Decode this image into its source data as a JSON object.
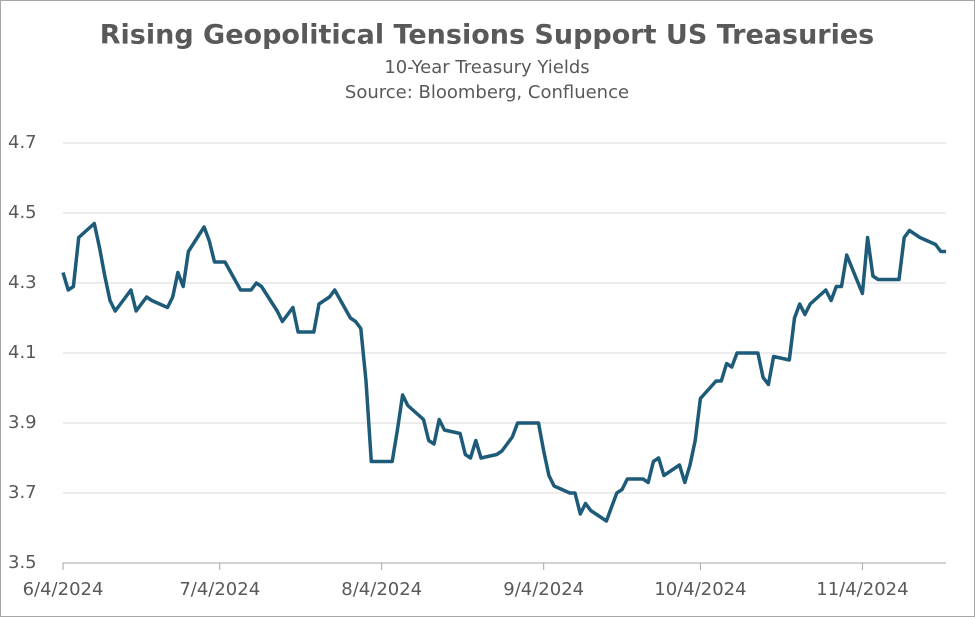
{
  "chart_data": {
    "type": "line",
    "title": "Rising Geopolitical Tensions Support US Treasuries",
    "subtitle": "10-Year Treasury Yields",
    "source": "Source: Bloomberg, Confluence",
    "x": [
      "6/4/2024",
      "6/5/2024",
      "6/6/2024",
      "6/7/2024",
      "6/10/2024",
      "6/11/2024",
      "6/12/2024",
      "6/13/2024",
      "6/14/2024",
      "6/17/2024",
      "6/18/2024",
      "6/20/2024",
      "6/21/2024",
      "6/24/2024",
      "6/25/2024",
      "6/26/2024",
      "6/27/2024",
      "6/28/2024",
      "7/1/2024",
      "7/2/2024",
      "7/3/2024",
      "7/5/2024",
      "7/8/2024",
      "7/9/2024",
      "7/10/2024",
      "7/11/2024",
      "7/12/2024",
      "7/15/2024",
      "7/16/2024",
      "7/18/2024",
      "7/19/2024",
      "7/22/2024",
      "7/23/2024",
      "7/24/2024",
      "7/25/2024",
      "7/26/2024",
      "7/29/2024",
      "7/30/2024",
      "7/31/2024",
      "8/1/2024",
      "8/2/2024",
      "8/5/2024",
      "8/6/2024",
      "8/7/2024",
      "8/8/2024",
      "8/9/2024",
      "8/12/2024",
      "8/13/2024",
      "8/14/2024",
      "8/15/2024",
      "8/16/2024",
      "8/19/2024",
      "8/20/2024",
      "8/21/2024",
      "8/22/2024",
      "8/23/2024",
      "8/26/2024",
      "8/27/2024",
      "8/28/2024",
      "8/29/2024",
      "8/30/2024",
      "9/3/2024",
      "9/4/2024",
      "9/5/2024",
      "9/6/2024",
      "9/9/2024",
      "9/10/2024",
      "9/11/2024",
      "9/12/2024",
      "9/13/2024",
      "9/16/2024",
      "9/17/2024",
      "9/18/2024",
      "9/19/2024",
      "9/20/2024",
      "9/23/2024",
      "9/24/2024",
      "9/25/2024",
      "9/26/2024",
      "9/27/2024",
      "9/30/2024",
      "10/1/2024",
      "10/2/2024",
      "10/3/2024",
      "10/4/2024",
      "10/7/2024",
      "10/8/2024",
      "10/9/2024",
      "10/10/2024",
      "10/11/2024",
      "10/14/2024",
      "10/15/2024",
      "10/16/2024",
      "10/17/2024",
      "10/18/2024",
      "10/21/2024",
      "10/22/2024",
      "10/23/2024",
      "10/24/2024",
      "10/25/2024",
      "10/28/2024",
      "10/29/2024",
      "10/30/2024",
      "10/31/2024",
      "11/1/2024",
      "11/4/2024",
      "11/5/2024",
      "11/6/2024",
      "11/7/2024",
      "11/8/2024",
      "11/11/2024",
      "11/12/2024",
      "11/13/2024",
      "11/14/2024",
      "11/15/2024",
      "11/18/2024",
      "11/19/2024",
      "11/20/2024"
    ],
    "series": [
      {
        "name": "10-Year Treasury Yield",
        "color": "#1d5b79",
        "values": [
          4.33,
          4.28,
          4.29,
          4.43,
          4.47,
          4.4,
          4.32,
          4.25,
          4.22,
          4.28,
          4.22,
          4.26,
          4.25,
          4.23,
          4.26,
          4.33,
          4.29,
          4.39,
          4.46,
          4.42,
          4.36,
          4.36,
          4.28,
          4.28,
          4.28,
          4.3,
          4.29,
          4.22,
          4.19,
          4.23,
          4.16,
          4.16,
          4.24,
          4.25,
          4.26,
          4.28,
          4.2,
          4.19,
          4.17,
          4.02,
          3.79,
          3.79,
          3.79,
          3.88,
          3.98,
          3.95,
          3.91,
          3.85,
          3.84,
          3.91,
          3.88,
          3.87,
          3.81,
          3.8,
          3.85,
          3.8,
          3.81,
          3.82,
          3.84,
          3.86,
          3.9,
          3.9,
          3.82,
          3.75,
          3.72,
          3.7,
          3.7,
          3.64,
          3.67,
          3.65,
          3.62,
          3.66,
          3.7,
          3.71,
          3.74,
          3.74,
          3.73,
          3.79,
          3.8,
          3.75,
          3.78,
          3.73,
          3.78,
          3.85,
          3.97,
          4.02,
          4.02,
          4.07,
          4.06,
          4.1,
          4.1,
          4.1,
          4.03,
          4.01,
          4.09,
          4.08,
          4.2,
          4.24,
          4.21,
          4.24,
          4.28,
          4.25,
          4.29,
          4.29,
          4.38,
          4.27,
          4.43,
          4.32,
          4.31,
          4.31,
          4.31,
          4.43,
          4.45,
          4.44,
          4.43,
          4.41,
          4.39,
          4.39
        ]
      }
    ],
    "xlim": [
      "6/4/2024",
      "11/20/2024"
    ],
    "xticks": [
      "6/4/2024",
      "7/4/2024",
      "8/4/2024",
      "9/4/2024",
      "10/4/2024",
      "11/4/2024"
    ],
    "ylim": [
      3.5,
      4.7
    ],
    "yticks": [
      3.5,
      3.7,
      3.9,
      4.1,
      4.3,
      4.5,
      4.7
    ],
    "grid": true
  }
}
